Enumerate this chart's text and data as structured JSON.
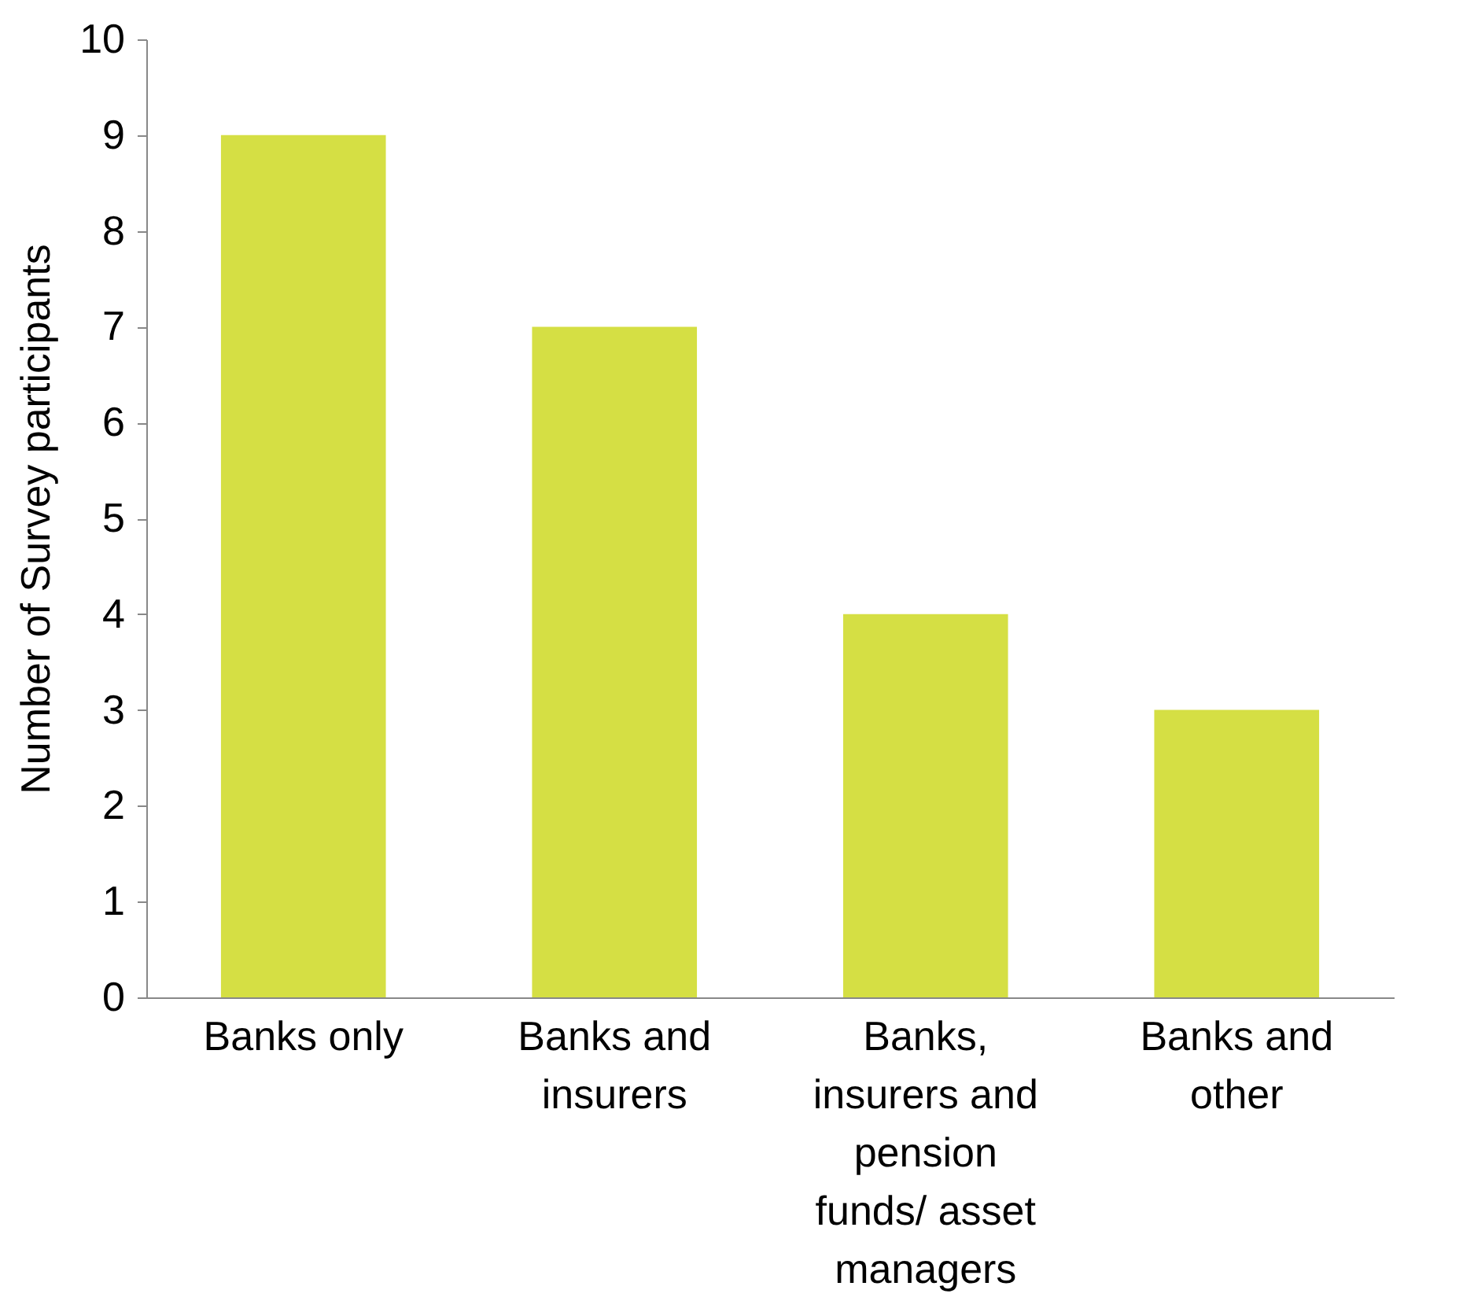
{
  "chart_data": {
    "type": "bar",
    "ylabel": "Number of Survey participants",
    "categories": [
      "Banks only",
      "Banks and insurers",
      "Banks, insurers and pension funds/ asset managers",
      "Banks and other"
    ],
    "values": [
      9,
      7,
      4,
      3
    ],
    "color": "#d5df44",
    "ylim": [
      0,
      10
    ],
    "yticks": [
      0,
      1,
      2,
      3,
      4,
      5,
      6,
      7,
      8,
      9,
      10
    ],
    "grid": false
  }
}
